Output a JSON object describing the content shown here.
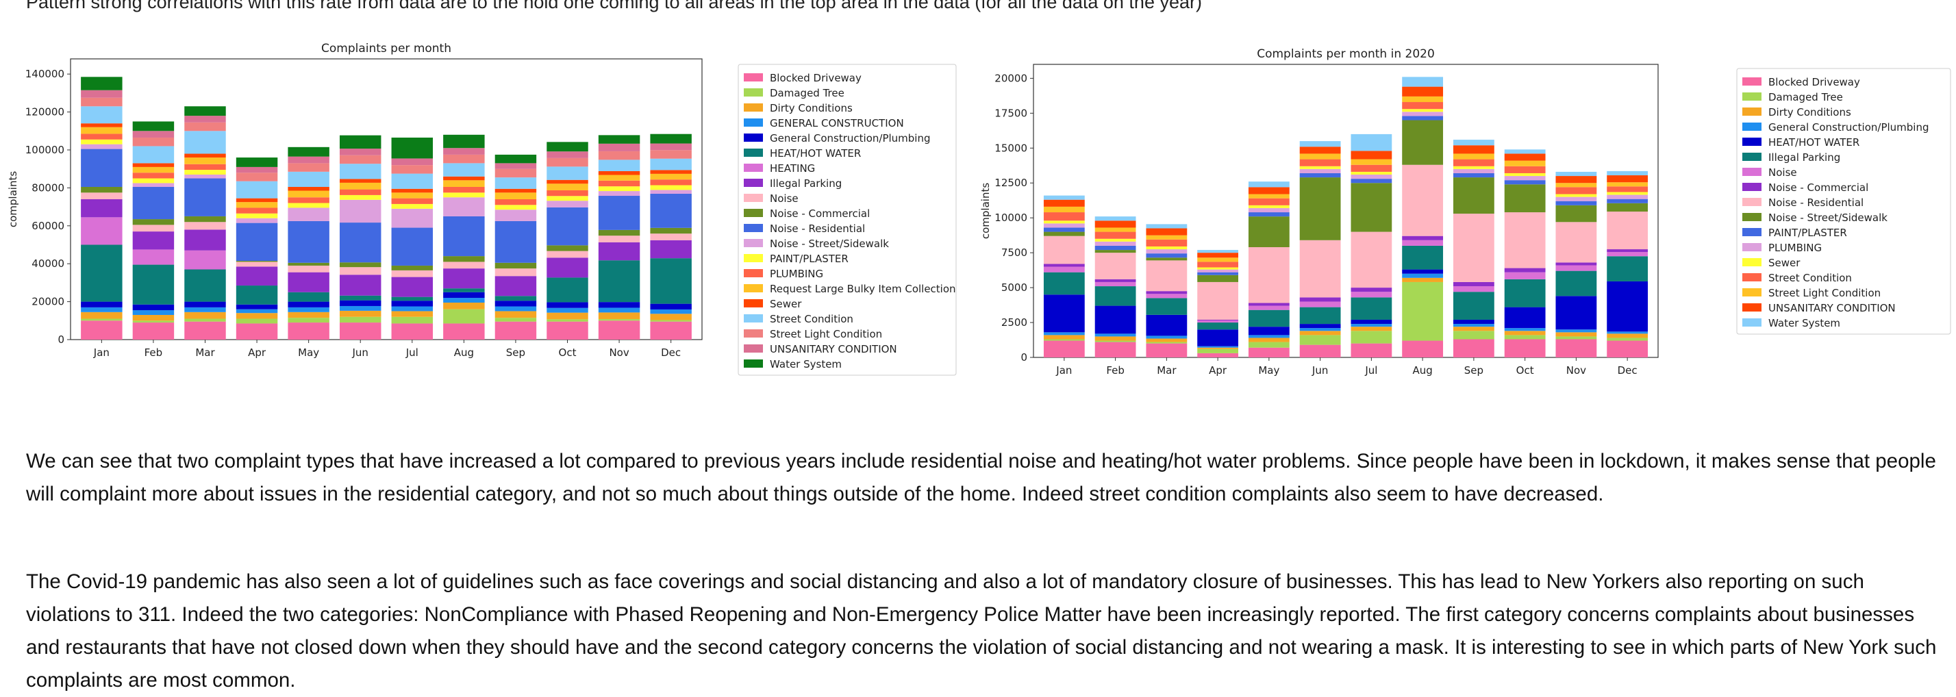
{
  "top_text": "Pattern strong correlations with this rate from data are to the hold one coming to all areas in the top area in the data (for all the data on the year)",
  "paragraphs": [
    "We can see that two complaint types that have increased a lot compared to previous years include residential noise and heating/hot water problems. Since people have been in lockdown, it makes sense that people will complaint more about issues in the residential category, and not so much about things outside of the home. Indeed street condition complaints also seem to have decreased.",
    "The Covid-19 pandemic has also seen a lot of guidelines such as face coverings and social distancing and also a lot of mandatory closure of businesses. This has lead to New Yorkers also reporting on such violations to 311. Indeed the two categories: NonCompliance with Phased Reopening and Non-Emergency Police Matter have been increasingly reported. The first category concerns complaints about businesses and restaurants that have not closed down when they should have and the second category concerns the violation of social distancing and not wearing a mask. It is interesting to see in which parts of New York such complaints are most common."
  ],
  "chart_data": [
    {
      "type": "bar",
      "stacked": true,
      "title": "Complaints per month",
      "xlabel": "",
      "ylabel": "complaints",
      "ylim": [
        0,
        148000
      ],
      "yticks": [
        0,
        20000,
        40000,
        60000,
        80000,
        100000,
        120000,
        140000
      ],
      "legend_position": "right",
      "categories": [
        "Jan",
        "Feb",
        "Mar",
        "Apr",
        "May",
        "Jun",
        "Jul",
        "Aug",
        "Sep",
        "Oct",
        "Nov",
        "Dec"
      ],
      "series": [
        {
          "name": "Blocked Driveway",
          "color": "#f768a1",
          "values": [
            10000,
            9000,
            9500,
            8500,
            9000,
            9000,
            8500,
            8500,
            9500,
            9500,
            10000,
            9500
          ]
        },
        {
          "name": "Damaged Tree",
          "color": "#a6d854",
          "values": [
            1000,
            1000,
            1500,
            2500,
            2500,
            3000,
            3500,
            7500,
            2000,
            1200,
            800,
            800
          ]
        },
        {
          "name": "Dirty Conditions",
          "color": "#f5a623",
          "values": [
            3500,
            3000,
            3500,
            3000,
            3000,
            3200,
            3000,
            3500,
            3500,
            3500,
            3500,
            3300
          ]
        },
        {
          "name": "GENERAL CONSTRUCTION",
          "color": "#1f8ff0",
          "values": [
            2500,
            2500,
            2500,
            2000,
            2500,
            2500,
            2500,
            2500,
            2500,
            2500,
            2500,
            2300
          ]
        },
        {
          "name": "General Construction/Plumbing",
          "color": "#0000cd",
          "values": [
            3000,
            3000,
            3000,
            2500,
            3000,
            3000,
            3000,
            3000,
            3000,
            3000,
            3000,
            3000
          ]
        },
        {
          "name": "HEAT/HOT WATER",
          "color": "#0b7d78",
          "values": [
            30000,
            21000,
            17000,
            10000,
            5000,
            2500,
            2000,
            2000,
            2500,
            13000,
            22000,
            24000
          ]
        },
        {
          "name": "HEATING",
          "color": "#da70d6",
          "values": [
            14500,
            8000,
            10000,
            0,
            0,
            0,
            0,
            0,
            0,
            0,
            0,
            0
          ]
        },
        {
          "name": "Illegal Parking",
          "color": "#8e2ec9",
          "values": [
            9500,
            9500,
            11000,
            10000,
            10500,
            11000,
            10500,
            10500,
            10500,
            10500,
            9500,
            9500
          ]
        },
        {
          "name": "Noise",
          "color": "#ffb6c1",
          "values": [
            3500,
            3500,
            4000,
            2500,
            3500,
            4000,
            3500,
            3500,
            4000,
            3500,
            3500,
            3500
          ]
        },
        {
          "name": "Noise - Commercial",
          "color": "#6b8e23",
          "values": [
            3000,
            3000,
            3000,
            500,
            1500,
            2500,
            2500,
            3000,
            3000,
            3000,
            3000,
            3000
          ]
        },
        {
          "name": "Noise - Residential",
          "color": "#4169e1",
          "values": [
            20000,
            17000,
            20000,
            20000,
            22000,
            21000,
            20000,
            21000,
            22000,
            20000,
            18000,
            18000
          ]
        },
        {
          "name": "Noise - Street/Sidewalk",
          "color": "#dda0dd",
          "values": [
            2500,
            2000,
            2000,
            2500,
            7000,
            12000,
            10000,
            10000,
            6000,
            3500,
            2500,
            2000
          ]
        },
        {
          "name": "PAINT/PLASTER",
          "color": "#ffff33",
          "values": [
            2500,
            2500,
            2500,
            2500,
            2500,
            2500,
            2500,
            2500,
            2500,
            2500,
            2500,
            2500
          ]
        },
        {
          "name": "PLUMBING",
          "color": "#ff6347",
          "values": [
            3000,
            3000,
            3000,
            3000,
            3000,
            3000,
            3000,
            3000,
            3000,
            3000,
            3000,
            3000
          ]
        },
        {
          "name": "Request Large Bulky Item Collection",
          "color": "#ffc125",
          "values": [
            3500,
            3000,
            3500,
            3000,
            3500,
            3500,
            3000,
            3500,
            3500,
            3500,
            3000,
            3000
          ]
        },
        {
          "name": "Sewer",
          "color": "#ff4500",
          "values": [
            2000,
            2000,
            2000,
            2000,
            2000,
            2000,
            2000,
            2000,
            2000,
            2000,
            2000,
            2000
          ]
        },
        {
          "name": "Street Condition",
          "color": "#87cefa",
          "values": [
            9000,
            9000,
            12000,
            9000,
            8000,
            8000,
            8000,
            7000,
            6000,
            7000,
            6000,
            6000
          ]
        },
        {
          "name": "Street Light Condition",
          "color": "#f08080",
          "values": [
            4500,
            4500,
            4500,
            4500,
            4500,
            4500,
            4500,
            4500,
            4500,
            4500,
            4500,
            4500
          ]
        },
        {
          "name": "UNSANITARY CONDITION",
          "color": "#db7093",
          "values": [
            4000,
            3500,
            3500,
            3000,
            3500,
            3500,
            3500,
            3500,
            3000,
            3500,
            4000,
            3500
          ]
        },
        {
          "name": "Water System",
          "color": "#0b7d18",
          "values": [
            7000,
            5000,
            5000,
            5000,
            5000,
            7000,
            11000,
            7000,
            4500,
            5000,
            4500,
            5000
          ]
        }
      ]
    },
    {
      "type": "bar",
      "stacked": true,
      "title": "Complaints per month in 2020",
      "xlabel": "",
      "ylabel": "complaints",
      "ylim": [
        0,
        21000
      ],
      "yticks": [
        0,
        2500,
        5000,
        7500,
        10000,
        12500,
        15000,
        17500,
        20000
      ],
      "legend_position": "right",
      "categories": [
        "Jan",
        "Feb",
        "Mar",
        "Apr",
        "May",
        "Jun",
        "Jul",
        "Aug",
        "Sep",
        "Oct",
        "Nov",
        "Dec"
      ],
      "series": [
        {
          "name": "Blocked Driveway",
          "color": "#f768a1",
          "values": [
            1200,
            1100,
            1000,
            300,
            700,
            900,
            1000,
            1200,
            1300,
            1300,
            1300,
            1200
          ]
        },
        {
          "name": "Damaged Tree",
          "color": "#a6d854",
          "values": [
            100,
            100,
            100,
            300,
            400,
            700,
            900,
            4200,
            600,
            300,
            200,
            200
          ]
        },
        {
          "name": "Dirty Conditions",
          "color": "#f5a623",
          "values": [
            300,
            300,
            250,
            100,
            300,
            300,
            300,
            300,
            300,
            300,
            300,
            300
          ]
        },
        {
          "name": "General Construction/Plumbing",
          "color": "#1f8ff0",
          "values": [
            200,
            200,
            200,
            100,
            200,
            200,
            200,
            300,
            200,
            200,
            200,
            150
          ]
        },
        {
          "name": "HEAT/HOT WATER",
          "color": "#0000cd",
          "values": [
            2700,
            2000,
            1500,
            1200,
            600,
            300,
            300,
            300,
            300,
            1500,
            2400,
            3600
          ]
        },
        {
          "name": "Illegal Parking",
          "color": "#0b7d78",
          "values": [
            1600,
            1400,
            1200,
            500,
            1200,
            1200,
            1600,
            1700,
            2000,
            2000,
            1800,
            1800
          ]
        },
        {
          "name": "Noise",
          "color": "#da70d6",
          "values": [
            400,
            300,
            300,
            150,
            300,
            400,
            400,
            400,
            400,
            500,
            400,
            300
          ]
        },
        {
          "name": "Noise - Commercial",
          "color": "#8e2ec9",
          "values": [
            200,
            200,
            200,
            50,
            200,
            300,
            300,
            300,
            300,
            300,
            200,
            200
          ]
        },
        {
          "name": "Noise - Residential",
          "color": "#ffb6c1",
          "values": [
            2000,
            1900,
            2200,
            2700,
            4000,
            4100,
            4000,
            5100,
            4900,
            4000,
            2900,
            2700
          ]
        },
        {
          "name": "Noise - Street/Sidewalk",
          "color": "#6b8e23",
          "values": [
            300,
            200,
            200,
            500,
            2200,
            4500,
            3500,
            3200,
            2600,
            2000,
            1200,
            600
          ]
        },
        {
          "name": "PAINT/PLASTER",
          "color": "#4169e1",
          "values": [
            300,
            300,
            300,
            200,
            300,
            300,
            300,
            300,
            300,
            300,
            300,
            300
          ]
        },
        {
          "name": "PLUMBING",
          "color": "#dda0dd",
          "values": [
            300,
            300,
            300,
            200,
            300,
            300,
            300,
            300,
            300,
            300,
            300,
            300
          ]
        },
        {
          "name": "Sewer",
          "color": "#ffff33",
          "values": [
            200,
            200,
            200,
            150,
            200,
            200,
            200,
            200,
            200,
            200,
            200,
            200
          ]
        },
        {
          "name": "Street Condition",
          "color": "#ff6347",
          "values": [
            600,
            500,
            500,
            400,
            500,
            500,
            500,
            500,
            500,
            500,
            500,
            400
          ]
        },
        {
          "name": "Street Light Condition",
          "color": "#ffc125",
          "values": [
            400,
            300,
            300,
            300,
            300,
            400,
            400,
            400,
            400,
            400,
            300,
            300
          ]
        },
        {
          "name": "UNSANITARY CONDITION",
          "color": "#ff4500",
          "values": [
            500,
            500,
            500,
            350,
            500,
            500,
            600,
            700,
            600,
            500,
            500,
            500
          ]
        },
        {
          "name": "Water System",
          "color": "#87cefa",
          "values": [
            300,
            300,
            300,
            200,
            400,
            400,
            1200,
            700,
            400,
            300,
            300,
            300
          ]
        }
      ]
    }
  ]
}
